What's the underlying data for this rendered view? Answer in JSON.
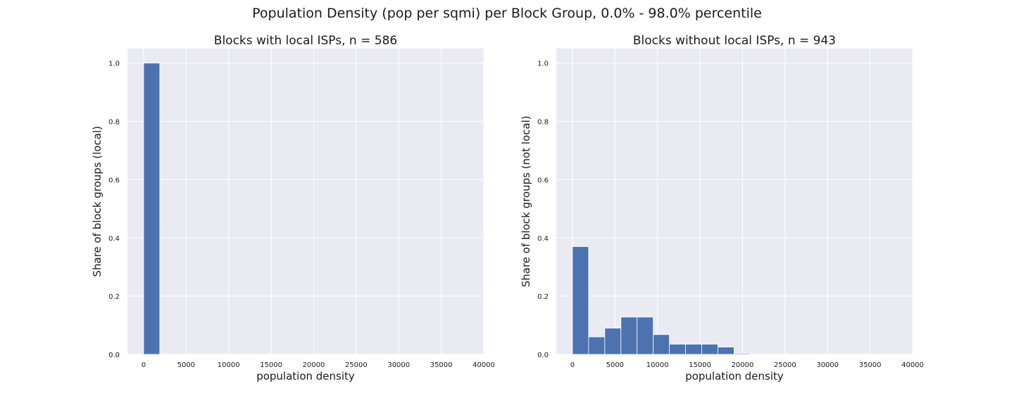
{
  "figure": {
    "suptitle": "Population Density (pop per sqmi) per Block Group, 0.0% - 98.0% percentile"
  },
  "colors": {
    "bar": "#4c72b0",
    "axes_background": "#eaeaf2",
    "grid": "#ffffff",
    "text": "#1a1a1a"
  },
  "chart_data": [
    {
      "type": "bar",
      "title": "Blocks with local ISPs, n = 586",
      "xlabel": "population density",
      "ylabel": "Share of block groups (local)",
      "xlim": [
        -1900,
        40000
      ],
      "ylim": [
        0,
        1.05
      ],
      "xticks": [
        0,
        5000,
        10000,
        15000,
        20000,
        25000,
        30000,
        35000,
        40000
      ],
      "yticks": [
        0.0,
        0.2,
        0.4,
        0.6,
        0.8,
        1.0
      ],
      "grid": true,
      "bins": [
        {
          "x0": 0,
          "x1": 1900,
          "value": 1.0
        }
      ]
    },
    {
      "type": "bar",
      "title": "Blocks without local ISPs, n = 943",
      "xlabel": "population density",
      "ylabel": "Share of block groups (not local)",
      "xlim": [
        -1900,
        40000
      ],
      "ylim": [
        0,
        1.05
      ],
      "xticks": [
        0,
        5000,
        10000,
        15000,
        20000,
        25000,
        30000,
        35000,
        40000
      ],
      "yticks": [
        0.0,
        0.2,
        0.4,
        0.6,
        0.8,
        1.0
      ],
      "grid": true,
      "bins": [
        {
          "x0": 0,
          "x1": 1900,
          "value": 0.37
        },
        {
          "x0": 1900,
          "x1": 3800,
          "value": 0.06
        },
        {
          "x0": 3800,
          "x1": 5700,
          "value": 0.09
        },
        {
          "x0": 5700,
          "x1": 7600,
          "value": 0.128
        },
        {
          "x0": 7600,
          "x1": 9500,
          "value": 0.128
        },
        {
          "x0": 9500,
          "x1": 11400,
          "value": 0.068
        },
        {
          "x0": 11400,
          "x1": 13300,
          "value": 0.035
        },
        {
          "x0": 13300,
          "x1": 15200,
          "value": 0.035
        },
        {
          "x0": 15200,
          "x1": 17100,
          "value": 0.035
        },
        {
          "x0": 17100,
          "x1": 19000,
          "value": 0.025
        },
        {
          "x0": 19000,
          "x1": 20900,
          "value": 0.003
        }
      ]
    }
  ]
}
